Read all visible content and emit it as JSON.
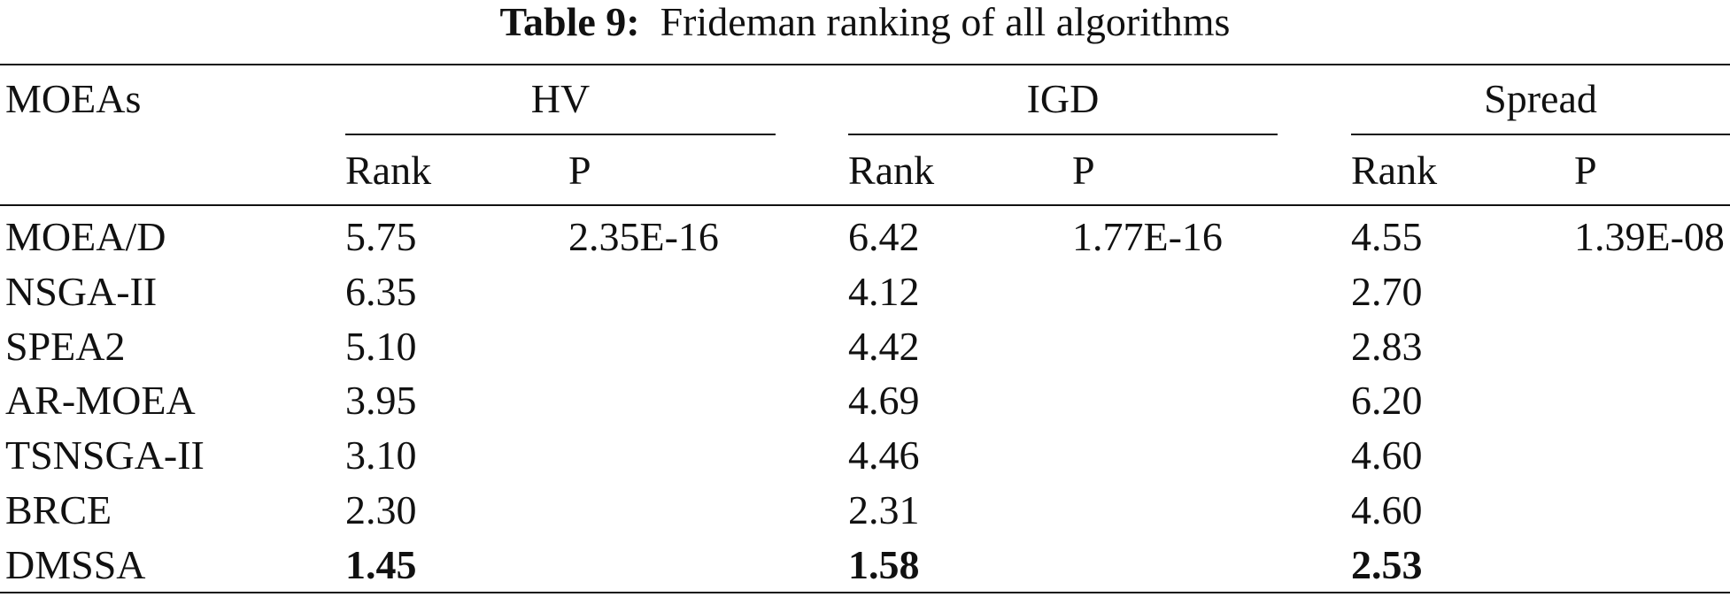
{
  "caption": {
    "label": "Table 9:",
    "text": "Frideman ranking of all algorithms"
  },
  "table": {
    "header": {
      "first": "MOEAs",
      "groups": [
        "HV",
        "IGD",
        "Spread"
      ],
      "subheaders": [
        "Rank",
        "P",
        "Rank",
        "P",
        "Rank",
        "P"
      ]
    },
    "rows": [
      [
        "MOEA/D",
        "5.75",
        "2.35E-16",
        "6.42",
        "1.77E-16",
        "4.55",
        "1.39E-08"
      ],
      [
        "NSGA-II",
        "6.35",
        null,
        "4.12",
        null,
        "2.70",
        null
      ],
      [
        "SPEA2",
        "5.10",
        null,
        "4.42",
        null,
        "2.83",
        null
      ],
      [
        "AR-MOEA",
        "3.95",
        null,
        "4.69",
        null,
        "6.20",
        null
      ],
      [
        "TSNSGA-II",
        "3.10",
        null,
        "4.46",
        null,
        "4.60",
        null
      ],
      [
        "BRCE",
        "2.30",
        null,
        "2.31",
        null,
        "4.60",
        null
      ],
      [
        "DMSSA",
        "1.45",
        null,
        "1.58",
        null,
        "2.53",
        null
      ]
    ]
  }
}
